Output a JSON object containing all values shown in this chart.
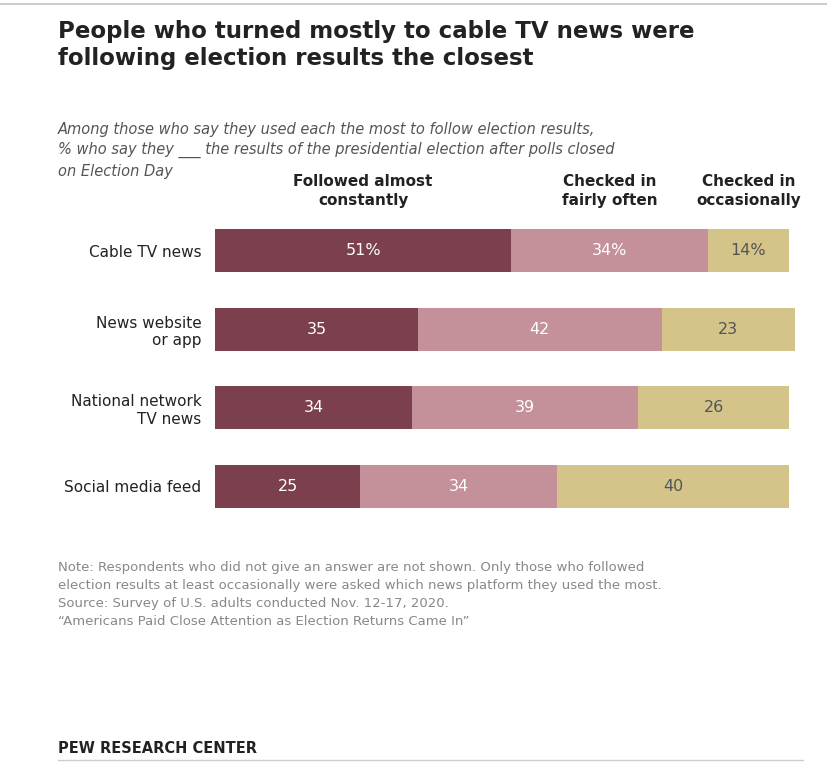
{
  "title": "People who turned mostly to cable TV news were\nfollowing election results the closest",
  "subtitle": "Among those who say they used each the most to follow election results,\n% who say they ___ the results of the presidential election after polls closed\non Election Day",
  "categories": [
    "Cable TV news",
    "News website\nor app",
    "National network\nTV news",
    "Social media feed"
  ],
  "series": [
    {
      "name": "Followed almost\nconstantly",
      "values": [
        51,
        35,
        34,
        25
      ],
      "color": "#7b3f4e"
    },
    {
      "name": "Checked in\nfairly often",
      "values": [
        34,
        42,
        39,
        34
      ],
      "color": "#c4909a"
    },
    {
      "name": "Checked in\noccasionally",
      "values": [
        14,
        23,
        26,
        40
      ],
      "color": "#d4c48a"
    }
  ],
  "labels": [
    [
      "51%",
      "34%",
      "14%"
    ],
    [
      "35",
      "42",
      "23"
    ],
    [
      "34",
      "39",
      "26"
    ],
    [
      "25",
      "34",
      "40"
    ]
  ],
  "label_colors": [
    [
      "white",
      "white",
      "#555555"
    ],
    [
      "white",
      "white",
      "#555555"
    ],
    [
      "white",
      "white",
      "#555555"
    ],
    [
      "white",
      "white",
      "#555555"
    ]
  ],
  "note_line1": "Note: Respondents who did not give an answer are not shown. Only those who followed",
  "note_line2": "election results at least occasionally were asked which news platform they used the most.",
  "note_line3": "Source: Survey of U.S. adults conducted Nov. 12-17, 2020.",
  "note_line4": "“Americans Paid Close Attention as Election Returns Came In”",
  "footer": "PEW RESEARCH CENTER",
  "background_color": "#ffffff",
  "text_color": "#222222",
  "note_color": "#888888",
  "bar_height": 0.55
}
